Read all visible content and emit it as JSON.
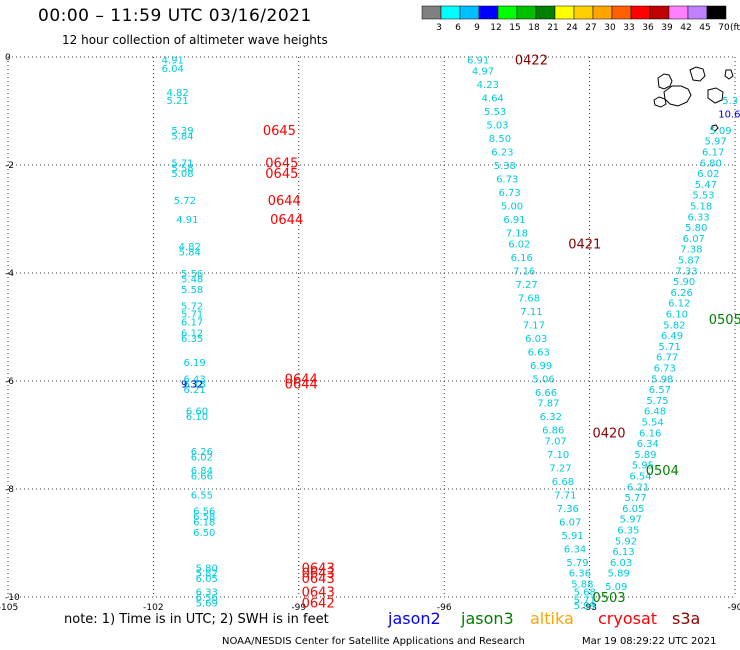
{
  "header": {
    "title": "00:00 – 11:59 UTC 03/16/2021",
    "subtitle": "12 hour collection of altimeter wave heights"
  },
  "colorbar": {
    "labels": [
      "3",
      "6",
      "9",
      "12",
      "15",
      "18",
      "21",
      "24",
      "27",
      "30",
      "33",
      "36",
      "39",
      "42",
      "45",
      "70"
    ],
    "unit": "(ft)",
    "colors": [
      "#808080",
      "#00ffff",
      "#00bfff",
      "#0000ff",
      "#00ff00",
      "#00c000",
      "#008000",
      "#ffff00",
      "#ffd000",
      "#ffa500",
      "#ff6000",
      "#ff0000",
      "#c00000",
      "#ff80ff",
      "#c080ff",
      "#000000"
    ]
  },
  "axes": {
    "x_ticks": [
      "-105",
      "-102",
      "-99",
      "-96",
      "-93",
      "-90"
    ],
    "y_ticks": [
      "0",
      "-2",
      "-4",
      "-6",
      "-8",
      "-10"
    ]
  },
  "tracks": [
    {
      "name": "cryosat_west",
      "color": "#00ccdd",
      "points": [
        {
          "x": -101.6,
          "y": -0.05,
          "v": "4.91"
        },
        {
          "x": -101.6,
          "y": -0.2,
          "v": "6.04"
        },
        {
          "x": -101.5,
          "y": -0.65,
          "v": "4.82"
        },
        {
          "x": -101.5,
          "y": -0.8,
          "v": "5.21"
        },
        {
          "x": -101.4,
          "y": -1.35,
          "v": "5.39"
        },
        {
          "x": -101.4,
          "y": -1.45,
          "v": "5.84"
        },
        {
          "x": -101.4,
          "y": -1.95,
          "v": "5.71"
        },
        {
          "x": -101.4,
          "y": -2.05,
          "v": "5.58"
        },
        {
          "x": -101.4,
          "y": -2.15,
          "v": "5.08"
        },
        {
          "x": -101.35,
          "y": -2.65,
          "v": "5.72"
        },
        {
          "x": -101.3,
          "y": -3.0,
          "v": "4.91"
        },
        {
          "x": -101.25,
          "y": -3.5,
          "v": "4.82"
        },
        {
          "x": -101.25,
          "y": -3.6,
          "v": "5.84"
        },
        {
          "x": -101.2,
          "y": -4.0,
          "v": "5.56"
        },
        {
          "x": -101.2,
          "y": -4.1,
          "v": "5.48"
        },
        {
          "x": -101.2,
          "y": -4.3,
          "v": "5.58"
        },
        {
          "x": -101.2,
          "y": -4.6,
          "v": "5.72"
        },
        {
          "x": -101.2,
          "y": -4.75,
          "v": "5.71"
        },
        {
          "x": -101.2,
          "y": -4.9,
          "v": "6.17"
        },
        {
          "x": -101.2,
          "y": -5.1,
          "v": "6.12"
        },
        {
          "x": -101.2,
          "y": -5.2,
          "v": "6.35"
        },
        {
          "x": -101.15,
          "y": -5.65,
          "v": "6.19"
        },
        {
          "x": -101.15,
          "y": -5.95,
          "v": "6.43"
        },
        {
          "x": -101.15,
          "y": -6.05,
          "v": "6.18"
        },
        {
          "x": -101.15,
          "y": -6.15,
          "v": "6.21"
        },
        {
          "x": -101.1,
          "y": -6.55,
          "v": "6.60"
        },
        {
          "x": -101.1,
          "y": -6.65,
          "v": "6.10"
        },
        {
          "x": -101.0,
          "y": -7.3,
          "v": "6.26"
        },
        {
          "x": -101.0,
          "y": -7.4,
          "v": "6.02"
        },
        {
          "x": -101.0,
          "y": -7.65,
          "v": "6.84"
        },
        {
          "x": -101.0,
          "y": -7.75,
          "v": "6.66"
        },
        {
          "x": -101.0,
          "y": -8.1,
          "v": "6.55"
        },
        {
          "x": -100.95,
          "y": -8.4,
          "v": "6.56"
        },
        {
          "x": -100.95,
          "y": -8.5,
          "v": "6.58"
        },
        {
          "x": -100.95,
          "y": -8.6,
          "v": "6.18"
        },
        {
          "x": -100.95,
          "y": -8.8,
          "v": "6.50"
        },
        {
          "x": -100.9,
          "y": -9.45,
          "v": "5.80"
        },
        {
          "x": -100.9,
          "y": -9.55,
          "v": "5.82"
        },
        {
          "x": -100.9,
          "y": -9.65,
          "v": "6.05"
        },
        {
          "x": -100.9,
          "y": -9.9,
          "v": "6.33"
        },
        {
          "x": -100.9,
          "y": -10.0,
          "v": "6.56"
        },
        {
          "x": -100.9,
          "y": -10.1,
          "v": "5.69"
        }
      ]
    },
    {
      "name": "cryosat_east",
      "color": "#00ccdd",
      "points": [
        {
          "x": -95.3,
          "y": -0.05,
          "v": "6.91"
        },
        {
          "x": -95.2,
          "y": -0.25,
          "v": "4.97"
        },
        {
          "x": -95.1,
          "y": -0.5,
          "v": "4.23"
        },
        {
          "x": -95.0,
          "y": -0.75,
          "v": "4.64"
        },
        {
          "x": -94.95,
          "y": -1.0,
          "v": "5.53"
        },
        {
          "x": -94.9,
          "y": -1.25,
          "v": "5.03"
        },
        {
          "x": -94.85,
          "y": -1.5,
          "v": "8.50"
        },
        {
          "x": -94.8,
          "y": -1.75,
          "v": "6.23"
        },
        {
          "x": -94.75,
          "y": -2.0,
          "v": "5.38"
        },
        {
          "x": -94.7,
          "y": -2.25,
          "v": "6.73"
        },
        {
          "x": -94.65,
          "y": -2.5,
          "v": "6.73"
        },
        {
          "x": -94.6,
          "y": -2.75,
          "v": "5.00"
        },
        {
          "x": -94.55,
          "y": -3.0,
          "v": "6.91"
        },
        {
          "x": -94.5,
          "y": -3.25,
          "v": "7.18"
        },
        {
          "x": -94.45,
          "y": -3.45,
          "v": "6.02"
        },
        {
          "x": -94.4,
          "y": -3.7,
          "v": "6.16"
        },
        {
          "x": -94.35,
          "y": -3.95,
          "v": "7.16"
        },
        {
          "x": -94.3,
          "y": -4.2,
          "v": "7.27"
        },
        {
          "x": -94.25,
          "y": -4.45,
          "v": "7.68"
        },
        {
          "x": -94.2,
          "y": -4.7,
          "v": "7.11"
        },
        {
          "x": -94.15,
          "y": -4.95,
          "v": "7.17"
        },
        {
          "x": -94.1,
          "y": -5.2,
          "v": "6.03"
        },
        {
          "x": -94.05,
          "y": -5.45,
          "v": "6.63"
        },
        {
          "x": -94.0,
          "y": -5.7,
          "v": "6.99"
        },
        {
          "x": -93.95,
          "y": -5.95,
          "v": "5.06"
        },
        {
          "x": -93.9,
          "y": -6.2,
          "v": "6.66"
        },
        {
          "x": -93.85,
          "y": -6.4,
          "v": "7.87"
        },
        {
          "x": -93.8,
          "y": -6.65,
          "v": "6.32"
        },
        {
          "x": -93.75,
          "y": -6.9,
          "v": "6.86"
        },
        {
          "x": -93.7,
          "y": -7.1,
          "v": "7.07"
        },
        {
          "x": -93.65,
          "y": -7.35,
          "v": "7.10"
        },
        {
          "x": -93.6,
          "y": -7.6,
          "v": "7.27"
        },
        {
          "x": -93.55,
          "y": -7.85,
          "v": "6.68"
        },
        {
          "x": -93.5,
          "y": -8.1,
          "v": "7.71"
        },
        {
          "x": -93.45,
          "y": -8.35,
          "v": "7.36"
        },
        {
          "x": -93.4,
          "y": -8.6,
          "v": "6.07"
        },
        {
          "x": -93.35,
          "y": -8.85,
          "v": "5.91"
        },
        {
          "x": -93.3,
          "y": -9.1,
          "v": "6.34"
        },
        {
          "x": -93.25,
          "y": -9.35,
          "v": "5.79"
        },
        {
          "x": -93.2,
          "y": -9.55,
          "v": "6.36"
        },
        {
          "x": -93.15,
          "y": -9.75,
          "v": "5.88"
        },
        {
          "x": -93.1,
          "y": -9.9,
          "v": "5.68"
        },
        {
          "x": -93.1,
          "y": -10.05,
          "v": "5.71"
        },
        {
          "x": -93.1,
          "y": -10.15,
          "v": "5.99"
        }
      ]
    },
    {
      "name": "cryosat_northeast",
      "color": "#00ccdd",
      "points": [
        {
          "x": -90.3,
          "y": -1.35,
          "v": "5.09"
        },
        {
          "x": -90.4,
          "y": -1.55,
          "v": "5.97"
        },
        {
          "x": -90.45,
          "y": -1.75,
          "v": "6.17"
        },
        {
          "x": -90.5,
          "y": -1.95,
          "v": "6.80"
        },
        {
          "x": -90.55,
          "y": -2.15,
          "v": "6.02"
        },
        {
          "x": -90.6,
          "y": -2.35,
          "v": "5.47"
        },
        {
          "x": -90.65,
          "y": -2.55,
          "v": "5.53"
        },
        {
          "x": -90.7,
          "y": -2.75,
          "v": "5.18"
        },
        {
          "x": -90.75,
          "y": -2.95,
          "v": "6.33"
        },
        {
          "x": -90.8,
          "y": -3.15,
          "v": "5.80"
        },
        {
          "x": -90.85,
          "y": -3.35,
          "v": "6.07"
        },
        {
          "x": -90.9,
          "y": -3.55,
          "v": "7.38"
        },
        {
          "x": -90.95,
          "y": -3.75,
          "v": "5.87"
        },
        {
          "x": -91.0,
          "y": -3.95,
          "v": "7.33"
        },
        {
          "x": -91.05,
          "y": -4.15,
          "v": "5.90"
        },
        {
          "x": -91.1,
          "y": -4.35,
          "v": "6.26"
        },
        {
          "x": -91.15,
          "y": -4.55,
          "v": "6.12"
        },
        {
          "x": -91.2,
          "y": -4.75,
          "v": "6.10"
        },
        {
          "x": -91.25,
          "y": -4.95,
          "v": "5.82"
        },
        {
          "x": -91.3,
          "y": -5.15,
          "v": "6.49"
        },
        {
          "x": -91.35,
          "y": -5.35,
          "v": "5.71"
        },
        {
          "x": -91.4,
          "y": -5.55,
          "v": "6.77"
        },
        {
          "x": -91.45,
          "y": -5.75,
          "v": "6.73"
        },
        {
          "x": -91.5,
          "y": -5.95,
          "v": "5.98"
        },
        {
          "x": -91.55,
          "y": -6.15,
          "v": "6.57"
        },
        {
          "x": -91.6,
          "y": -6.35,
          "v": "5.75"
        },
        {
          "x": -91.65,
          "y": -6.55,
          "v": "6.48"
        },
        {
          "x": -91.7,
          "y": -6.75,
          "v": "5.54"
        },
        {
          "x": -91.75,
          "y": -6.95,
          "v": "6.16"
        },
        {
          "x": -91.8,
          "y": -7.15,
          "v": "6.34"
        },
        {
          "x": -91.85,
          "y": -7.35,
          "v": "5.89"
        },
        {
          "x": -91.9,
          "y": -7.55,
          "v": "5.95"
        },
        {
          "x": -91.95,
          "y": -7.75,
          "v": "6.54"
        },
        {
          "x": -92.0,
          "y": -7.95,
          "v": "6.21"
        },
        {
          "x": -92.05,
          "y": -8.15,
          "v": "5.77"
        },
        {
          "x": -92.1,
          "y": -8.35,
          "v": "6.05"
        },
        {
          "x": -92.15,
          "y": -8.55,
          "v": "5.97"
        },
        {
          "x": -92.2,
          "y": -8.75,
          "v": "6.35"
        },
        {
          "x": -92.25,
          "y": -8.95,
          "v": "5.92"
        },
        {
          "x": -92.3,
          "y": -9.15,
          "v": "6.13"
        },
        {
          "x": -92.35,
          "y": -9.35,
          "v": "6.03"
        },
        {
          "x": -92.4,
          "y": -9.55,
          "v": "5.89"
        },
        {
          "x": -92.45,
          "y": -9.8,
          "v": "5.09"
        }
      ]
    }
  ],
  "extra_values": [
    {
      "x": -101.2,
      "y": -6.05,
      "v": "9.32",
      "color": "#0000cc"
    },
    {
      "x": -90.05,
      "y": -1.05,
      "v": "10.61",
      "color": "#0000cc"
    },
    {
      "x": -90.1,
      "y": -0.8,
      "v": "5.3",
      "color": "#00ccdd"
    }
  ],
  "time_labels": [
    {
      "x": -99.4,
      "y": -1.35,
      "t": "0645",
      "color": "#ff0000"
    },
    {
      "x": -99.35,
      "y": -1.95,
      "t": "0645",
      "color": "#ff0000"
    },
    {
      "x": -99.35,
      "y": -2.15,
      "t": "0645",
      "color": "#ff0000"
    },
    {
      "x": -99.3,
      "y": -2.65,
      "t": "0644",
      "color": "#ff0000"
    },
    {
      "x": -99.25,
      "y": -3.0,
      "t": "0644",
      "color": "#ff0000"
    },
    {
      "x": -98.95,
      "y": -5.95,
      "t": "0644",
      "color": "#ff0000"
    },
    {
      "x": -98.95,
      "y": -6.05,
      "t": "0644",
      "color": "#ff0000"
    },
    {
      "x": -98.6,
      "y": -9.45,
      "t": "0643",
      "color": "#ff0000"
    },
    {
      "x": -98.6,
      "y": -9.55,
      "t": "0643",
      "color": "#ff0000"
    },
    {
      "x": -98.6,
      "y": -9.65,
      "t": "0643",
      "color": "#ff0000"
    },
    {
      "x": -98.6,
      "y": -9.9,
      "t": "0643",
      "color": "#ff0000"
    },
    {
      "x": -98.6,
      "y": -10.1,
      "t": "0642",
      "color": "#ff0000"
    },
    {
      "x": -94.2,
      "y": -0.05,
      "t": "0422",
      "color": "#8b0000"
    },
    {
      "x": -93.1,
      "y": -3.45,
      "t": "0421",
      "color": "#8b0000"
    },
    {
      "x": -92.6,
      "y": -6.95,
      "t": "0420",
      "color": "#8b0000"
    },
    {
      "x": -90.2,
      "y": -4.85,
      "t": "0505",
      "color": "#008000"
    },
    {
      "x": -91.5,
      "y": -7.65,
      "t": "0504",
      "color": "#008000"
    },
    {
      "x": -92.6,
      "y": -10.0,
      "t": "0503",
      "color": "#008000"
    }
  ],
  "footer": {
    "note": "note: 1) Time is in UTC; 2) SWH is in feet",
    "satellites": [
      {
        "name": "jason2",
        "color": "#0000ff"
      },
      {
        "name": "jason3",
        "color": "#008000"
      },
      {
        "name": "altika",
        "color": "#ffa500"
      },
      {
        "name": "cryosat",
        "color": "#ff0000"
      },
      {
        "name": "s3a",
        "color": "#8b0000"
      }
    ],
    "credit": "NOAA/NESDIS Center for Satellite Applications and Research",
    "date": "Mar 19 08:29:22 UTC 2021"
  }
}
